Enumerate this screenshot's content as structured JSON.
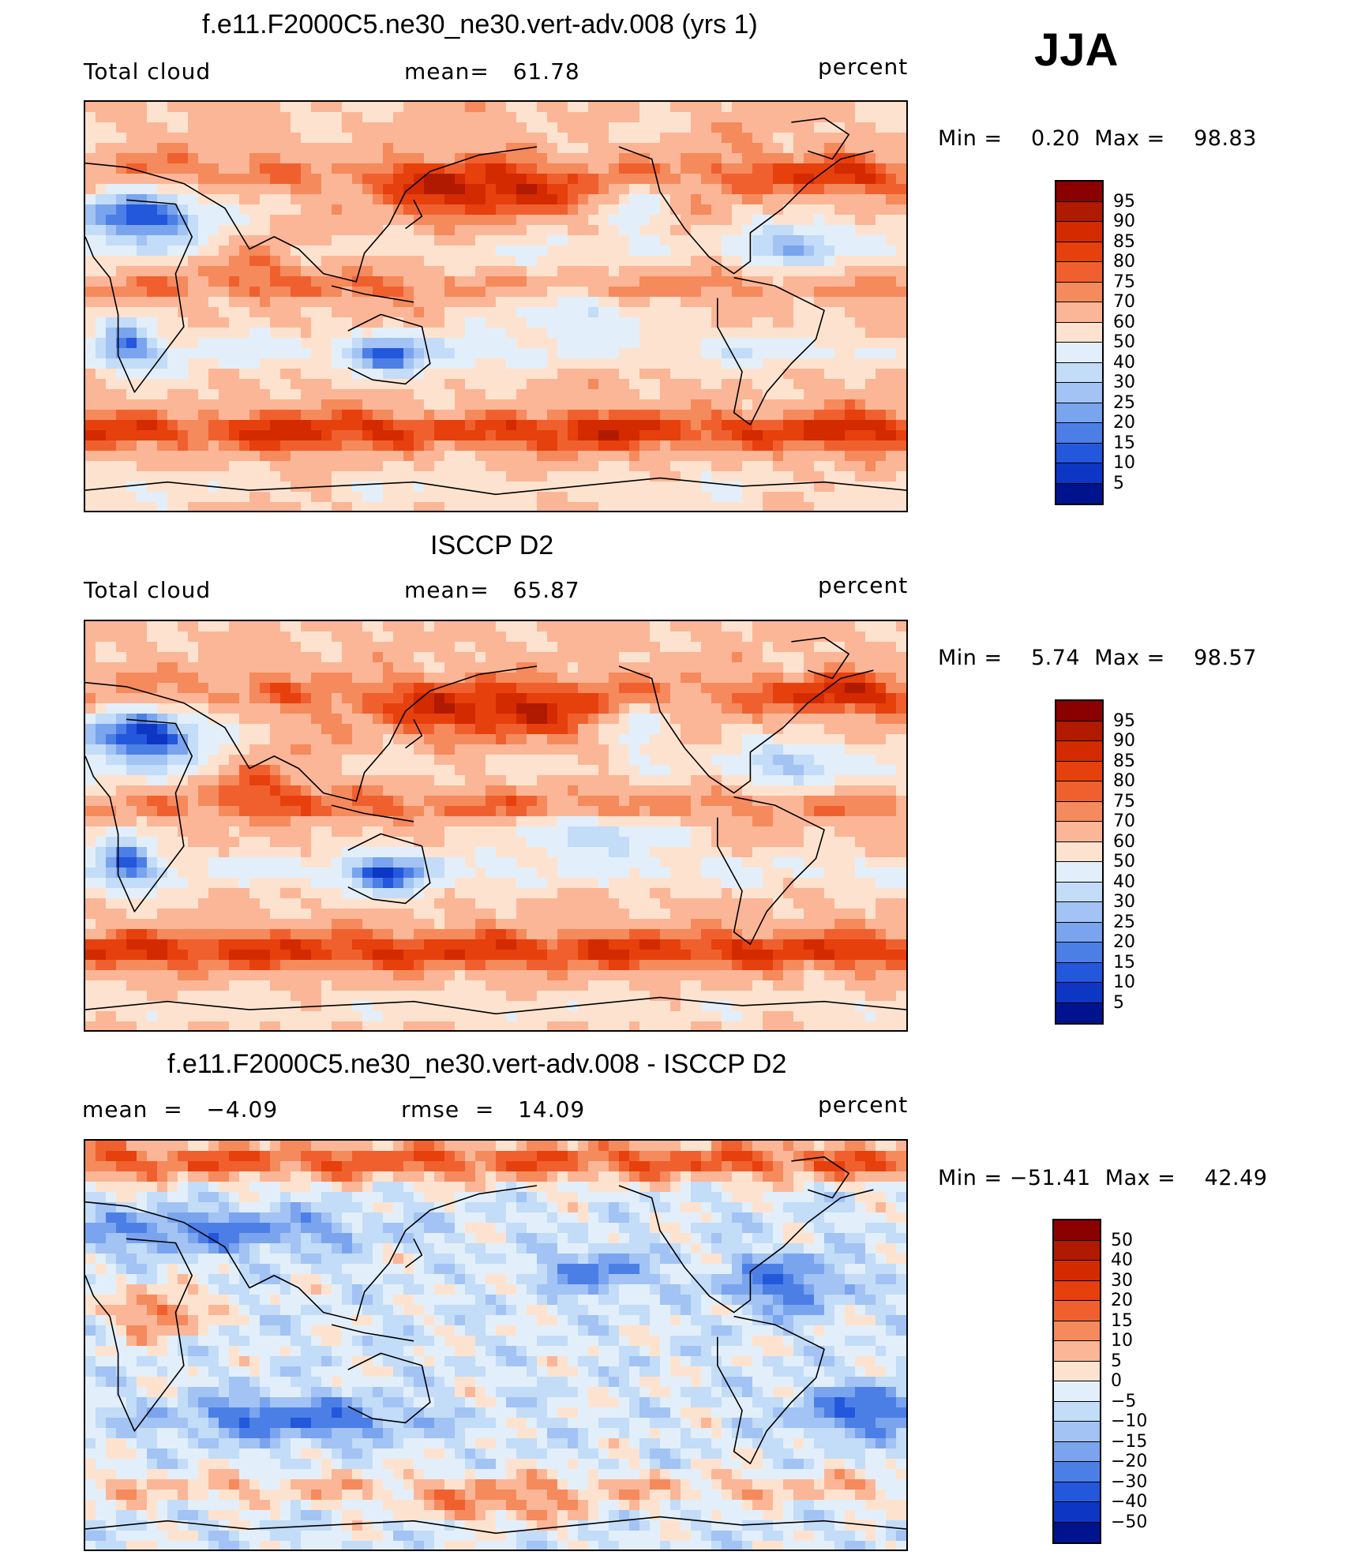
{
  "season": "JJA",
  "panels": [
    {
      "title": "f.e11.F2000C5.ne30_ne30.vert-adv.008 (yrs 1)",
      "left_label": "Total cloud",
      "center_label": "mean=   61.78",
      "right_label": "percent",
      "minmax": "Min =    0.20  Max =    98.83",
      "variant": "model"
    },
    {
      "title": "ISCCP D2",
      "left_label": "Total cloud",
      "center_label": "mean=   65.87",
      "right_label": "percent",
      "minmax": "Min =    5.74  Max =    98.57",
      "variant": "obs"
    },
    {
      "title": "f.e11.F2000C5.ne30_ne30.vert-adv.008 - ISCCP D2",
      "left_label": "mean  =   −4.09",
      "center_label": "rmse  =   14.09",
      "right_label": "percent",
      "minmax": "Min = −51.41  Max =    42.49",
      "variant": "diff"
    }
  ],
  "colorbars": {
    "abs": {
      "labels": [
        "95",
        "90",
        "85",
        "80",
        "75",
        "70",
        "60",
        "50",
        "40",
        "30",
        "25",
        "20",
        "15",
        "10",
        "5"
      ],
      "colors": [
        "#8b0000",
        "#b01a00",
        "#d42a00",
        "#e6400d",
        "#f0602e",
        "#f58a5d",
        "#fbb697",
        "#fde3cf",
        "#e2effa",
        "#c3dcf7",
        "#a2c3f3",
        "#7aa4ee",
        "#4c7fe6",
        "#2357dc",
        "#0d36c4",
        "#00138f"
      ]
    },
    "diff": {
      "labels": [
        "50",
        "40",
        "30",
        "20",
        "15",
        "10",
        "5",
        "0",
        "−5",
        "−10",
        "−15",
        "−20",
        "−30",
        "−40",
        "−50"
      ],
      "colors": [
        "#8b0000",
        "#b01a00",
        "#d42a00",
        "#e6400d",
        "#f0602e",
        "#f58a5d",
        "#fbb697",
        "#fde3cf",
        "#e2effa",
        "#c3dcf7",
        "#a2c3f3",
        "#7aa4ee",
        "#4c7fe6",
        "#2357dc",
        "#0d36c4",
        "#00138f"
      ]
    }
  }
}
